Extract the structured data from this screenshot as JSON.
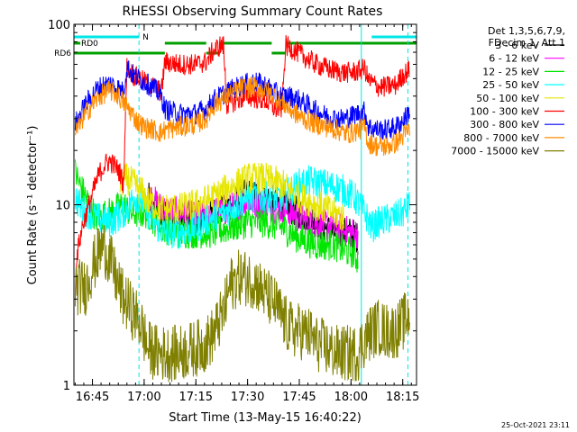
{
  "chart_data": {
    "type": "line",
    "title": "RHESSI Observing Summary Count Rates",
    "xlabel": "Start Time (13-May-15 16:40:22)",
    "ylabel": "Count Rate (s⁻¹ detector⁻¹)",
    "yscale": "log",
    "ylim": [
      1,
      100
    ],
    "xlim_minutes": [
      -0.37,
      99
    ],
    "x_ticks": [
      {
        "t": 5,
        "label": "16:45"
      },
      {
        "t": 20,
        "label": "17:00"
      },
      {
        "t": 35,
        "label": "17:15"
      },
      {
        "t": 50,
        "label": "17:30"
      },
      {
        "t": 65,
        "label": "17:45"
      },
      {
        "t": 80,
        "label": "18:00"
      },
      {
        "t": 95,
        "label": "18:15"
      }
    ],
    "y_ticks": [
      {
        "v": 1,
        "label": "1"
      },
      {
        "v": 10,
        "label": "10"
      },
      {
        "v": 100,
        "label": "100"
      }
    ],
    "legend_header": [
      "Det 1,3,5,6,7,9,",
      "FDecim 1, Att 1"
    ],
    "legend_position": "right",
    "timestamp": "25-Oct-2021 23:11",
    "flags": [
      {
        "label": "N",
        "color": "#00e5e5",
        "segments": [
          [
            -0.37,
            18.5
          ],
          [
            86,
            99
          ]
        ],
        "level": "top"
      },
      {
        "label": "RD0",
        "color": "#00a000",
        "segments": [
          [
            -0.37,
            1.5
          ]
        ],
        "level": "middle"
      },
      {
        "label": "",
        "color": "#00a000",
        "segments": [
          [
            26,
            38
          ],
          [
            42,
            57
          ],
          [
            61,
            99
          ]
        ],
        "level": "middle"
      },
      {
        "label": "RD6",
        "color": "#00a000",
        "segments": [
          [
            -0.37,
            26
          ],
          [
            38,
            42
          ],
          [
            57,
            61
          ]
        ],
        "level": "bottom"
      }
    ],
    "vlines": [
      {
        "t": 18.5,
        "color": "#00e5e5",
        "style": "dashed"
      },
      {
        "t": 83,
        "color": "#00e5e5",
        "style": "solid"
      },
      {
        "t": 96.5,
        "color": "#00e5e5",
        "style": "dashed"
      }
    ],
    "series": [
      {
        "name": "3 - 6 keV",
        "color": "#000000",
        "points": [
          [
            21,
            11
          ],
          [
            25,
            9
          ],
          [
            30,
            8.5
          ],
          [
            35,
            8.5
          ],
          [
            40,
            9
          ],
          [
            45,
            10
          ],
          [
            50,
            11.5
          ],
          [
            55,
            11
          ],
          [
            60,
            10
          ],
          [
            65,
            9
          ],
          [
            70,
            8
          ],
          [
            75,
            7
          ],
          [
            80,
            7
          ],
          [
            82,
            6.5
          ]
        ]
      },
      {
        "name": "6 - 12 keV",
        "color": "#ff00ff",
        "points": [
          [
            21,
            11.5
          ],
          [
            25,
            9.5
          ],
          [
            30,
            9
          ],
          [
            35,
            8.5
          ],
          [
            40,
            9
          ],
          [
            45,
            9.5
          ],
          [
            50,
            10.5
          ],
          [
            55,
            10
          ],
          [
            60,
            9.5
          ],
          [
            65,
            8.5
          ],
          [
            70,
            8
          ],
          [
            75,
            7.5
          ],
          [
            80,
            7
          ],
          [
            82,
            7
          ]
        ]
      },
      {
        "name": "12 - 25 keV",
        "color": "#00e600",
        "points": [
          [
            0,
            15
          ],
          [
            2,
            12
          ],
          [
            6,
            8.5
          ],
          [
            10,
            9
          ],
          [
            14,
            10
          ],
          [
            16,
            9
          ],
          [
            19,
            9
          ],
          [
            21,
            9
          ],
          [
            25,
            7.5
          ],
          [
            30,
            7
          ],
          [
            35,
            7
          ],
          [
            40,
            7
          ],
          [
            45,
            7.5
          ],
          [
            50,
            8
          ],
          [
            55,
            8
          ],
          [
            60,
            7.5
          ],
          [
            65,
            6.5
          ],
          [
            70,
            6
          ],
          [
            75,
            6
          ],
          [
            79,
            5.5
          ],
          [
            80,
            5.5
          ],
          [
            82,
            5
          ]
        ]
      },
      {
        "name": "25 - 50 keV",
        "color": "#00ffff",
        "points": [
          [
            0,
            11
          ],
          [
            2,
            9.5
          ],
          [
            6,
            8.5
          ],
          [
            10,
            8
          ],
          [
            14,
            9
          ],
          [
            17,
            11
          ],
          [
            19,
            11
          ],
          [
            21,
            9
          ],
          [
            24,
            7.5
          ],
          [
            26,
            7
          ],
          [
            30,
            7
          ],
          [
            35,
            7.5
          ],
          [
            40,
            8.5
          ],
          [
            45,
            9.5
          ],
          [
            50,
            11
          ],
          [
            55,
            11
          ],
          [
            60,
            11
          ],
          [
            65,
            13
          ],
          [
            68,
            13.5
          ],
          [
            72,
            13
          ],
          [
            76,
            12.5
          ],
          [
            78,
            12
          ],
          [
            81,
            11
          ],
          [
            84,
            9
          ],
          [
            86,
            7.5
          ],
          [
            88,
            8
          ],
          [
            92,
            8.5
          ],
          [
            95,
            9
          ],
          [
            97,
            10
          ]
        ]
      },
      {
        "name": "50 - 100 keV",
        "color": "#e6e600",
        "points": [
          [
            13,
            13
          ],
          [
            15,
            14
          ],
          [
            17,
            13
          ],
          [
            19,
            12
          ],
          [
            21,
            10.5
          ],
          [
            25,
            9.5
          ],
          [
            30,
            9.5
          ],
          [
            35,
            10
          ],
          [
            40,
            11
          ],
          [
            45,
            12.5
          ],
          [
            50,
            14
          ],
          [
            55,
            14
          ],
          [
            60,
            13
          ],
          [
            65,
            11
          ],
          [
            70,
            10
          ],
          [
            75,
            9
          ],
          [
            78,
            8.5
          ]
        ]
      },
      {
        "name": "100 - 300 keV",
        "color": "#ff0000",
        "points": [
          [
            0,
            2.8
          ],
          [
            0.3,
            5
          ],
          [
            2,
            7.5
          ],
          [
            5,
            11.5
          ],
          [
            7,
            15
          ],
          [
            9,
            17
          ],
          [
            10,
            17.5
          ],
          [
            12,
            16
          ],
          [
            13,
            15
          ],
          [
            14,
            13
          ],
          [
            15,
            58
          ],
          [
            17,
            52
          ],
          [
            20,
            48
          ],
          [
            23,
            45
          ],
          [
            25,
            42
          ],
          [
            26,
            62
          ],
          [
            30,
            60
          ],
          [
            35,
            60
          ],
          [
            38,
            62
          ],
          [
            40,
            71
          ],
          [
            42,
            76
          ],
          [
            43,
            76
          ],
          [
            44,
            36
          ],
          [
            50,
            40
          ],
          [
            55,
            38
          ],
          [
            58,
            34
          ],
          [
            60,
            34
          ],
          [
            61,
            76
          ],
          [
            63,
            73
          ],
          [
            67,
            65
          ],
          [
            70,
            60
          ],
          [
            72,
            58
          ],
          [
            74,
            56
          ],
          [
            76,
            55
          ],
          [
            78,
            54
          ],
          [
            80,
            54
          ],
          [
            82,
            55
          ],
          [
            84,
            57
          ],
          [
            85,
            49
          ],
          [
            88,
            45
          ],
          [
            90,
            45
          ],
          [
            93,
            46
          ],
          [
            95,
            52
          ],
          [
            97,
            56
          ]
        ]
      },
      {
        "name": "300 - 800 keV",
        "color": "#0000ff",
        "points": [
          [
            0,
            28
          ],
          [
            3,
            36
          ],
          [
            6,
            43
          ],
          [
            8,
            46
          ],
          [
            10,
            47
          ],
          [
            12,
            45
          ],
          [
            14,
            42
          ],
          [
            15,
            58
          ],
          [
            17,
            52
          ],
          [
            20,
            48
          ],
          [
            23,
            44
          ],
          [
            25,
            40
          ],
          [
            26,
            34
          ],
          [
            30,
            32
          ],
          [
            35,
            32
          ],
          [
            38,
            34
          ],
          [
            40,
            38
          ],
          [
            42,
            40
          ],
          [
            44,
            42
          ],
          [
            48,
            46
          ],
          [
            52,
            48
          ],
          [
            55,
            46
          ],
          [
            58,
            42
          ],
          [
            60,
            40
          ],
          [
            62,
            40
          ],
          [
            65,
            38
          ],
          [
            68,
            35
          ],
          [
            70,
            33
          ],
          [
            73,
            31
          ],
          [
            76,
            30
          ],
          [
            78,
            30
          ],
          [
            80,
            31
          ],
          [
            82,
            32
          ],
          [
            84,
            33
          ],
          [
            85,
            27
          ],
          [
            88,
            26
          ],
          [
            90,
            26
          ],
          [
            93,
            27
          ],
          [
            95,
            29
          ],
          [
            97,
            33
          ]
        ]
      },
      {
        "name": "800 - 7000 keV",
        "color": "#ff8c00",
        "points": [
          [
            0,
            25
          ],
          [
            3,
            32
          ],
          [
            6,
            38
          ],
          [
            8,
            41
          ],
          [
            10,
            43
          ],
          [
            12,
            41
          ],
          [
            14,
            37
          ],
          [
            16,
            33
          ],
          [
            18,
            29
          ],
          [
            20,
            27
          ],
          [
            23,
            26
          ],
          [
            25,
            25
          ],
          [
            26,
            26
          ],
          [
            30,
            27
          ],
          [
            35,
            28
          ],
          [
            38,
            30
          ],
          [
            40,
            35
          ],
          [
            42,
            38
          ],
          [
            44,
            40
          ],
          [
            48,
            44
          ],
          [
            52,
            45
          ],
          [
            55,
            43
          ],
          [
            58,
            40
          ],
          [
            60,
            37
          ],
          [
            62,
            34
          ],
          [
            65,
            31
          ],
          [
            68,
            29
          ],
          [
            70,
            28
          ],
          [
            73,
            27
          ],
          [
            76,
            26
          ],
          [
            78,
            25
          ],
          [
            80,
            25
          ],
          [
            82,
            26
          ],
          [
            84,
            27
          ],
          [
            85,
            22
          ],
          [
            88,
            21
          ],
          [
            90,
            21
          ],
          [
            93,
            22
          ],
          [
            95,
            24
          ],
          [
            97,
            26
          ]
        ]
      },
      {
        "name": "7000 - 15000 keV",
        "color": "#7f7f00",
        "points": [
          [
            0,
            3.5
          ],
          [
            3,
            3.5
          ],
          [
            5,
            4.5
          ],
          [
            8,
            6
          ],
          [
            10,
            5
          ],
          [
            12,
            3.8
          ],
          [
            14,
            3
          ],
          [
            17,
            2.5
          ],
          [
            19,
            2.2
          ],
          [
            21,
            1.6
          ],
          [
            24,
            1.5
          ],
          [
            26,
            1.5
          ],
          [
            30,
            1.5
          ],
          [
            35,
            1.6
          ],
          [
            38,
            1.7
          ],
          [
            40,
            1.9
          ],
          [
            43,
            2.5
          ],
          [
            45,
            3.6
          ],
          [
            48,
            4
          ],
          [
            52,
            3.8
          ],
          [
            55,
            3.2
          ],
          [
            58,
            2.8
          ],
          [
            61,
            2.2
          ],
          [
            63,
            2
          ],
          [
            65,
            2
          ],
          [
            68,
            1.9
          ],
          [
            70,
            1.7
          ],
          [
            73,
            1.6
          ],
          [
            76,
            1.5
          ],
          [
            79,
            1.5
          ],
          [
            82,
            1.5
          ],
          [
            84,
            1.8
          ],
          [
            86,
            2
          ],
          [
            88,
            2.1
          ],
          [
            90,
            2
          ],
          [
            93,
            2
          ],
          [
            95,
            2.2
          ],
          [
            97,
            2.5
          ]
        ]
      }
    ]
  }
}
